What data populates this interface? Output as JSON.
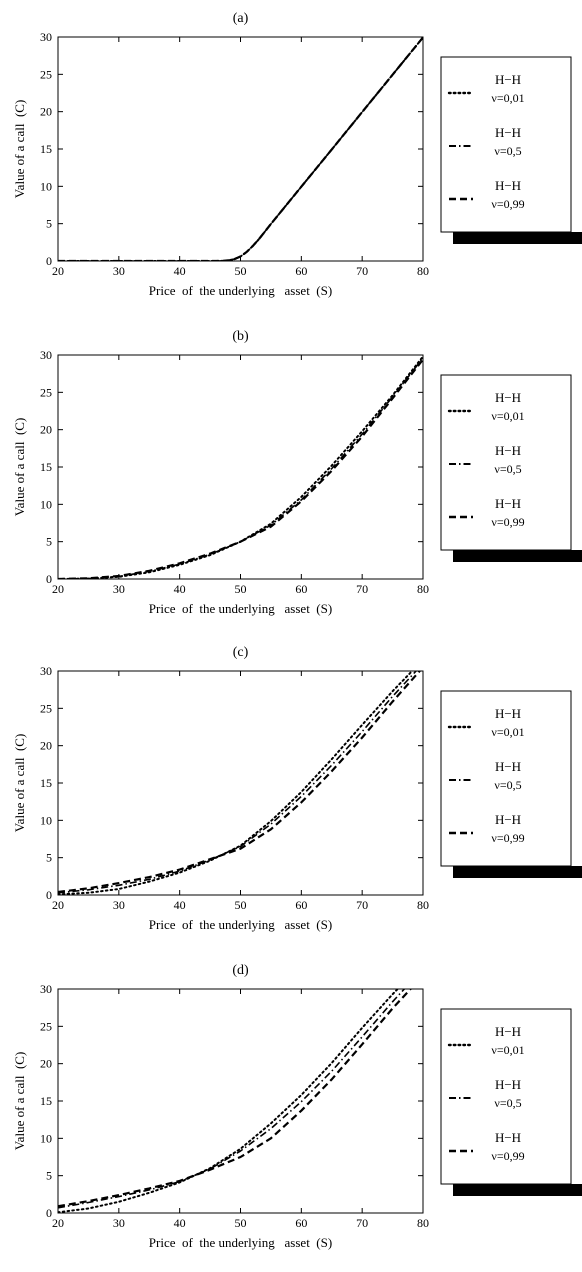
{
  "colors": {
    "background": "#ffffff",
    "ink": "#000000",
    "legend_shadow": "#000000"
  },
  "chart_data": [
    {
      "type": "line",
      "title": "(a)",
      "xlabel": "Price  of  the underlying   asset  (S)",
      "ylabel": "Value of a call  (C)",
      "xlim": [
        20,
        80
      ],
      "ylim": [
        0,
        30
      ],
      "xticks": [
        20,
        30,
        40,
        50,
        60,
        70,
        80
      ],
      "yticks": [
        0,
        5,
        10,
        15,
        20,
        25,
        30
      ],
      "grid": false,
      "legend_position": "right",
      "x": [
        20,
        30,
        40,
        45,
        47,
        48,
        49,
        50,
        51,
        52,
        53,
        55,
        60,
        65,
        70,
        75,
        80
      ],
      "series": [
        {
          "model": "H−H",
          "param": "ν=0,01",
          "style": "dotted",
          "values": [
            0,
            0,
            0,
            0,
            0.02,
            0.08,
            0.25,
            0.6,
            1.2,
            2.0,
            2.9,
            4.95,
            9.95,
            14.95,
            19.95,
            24.95,
            29.95
          ]
        },
        {
          "model": "H−H",
          "param": "ν=0,5",
          "style": "dashdot",
          "values": [
            0,
            0,
            0,
            0,
            0.02,
            0.08,
            0.25,
            0.6,
            1.2,
            2.0,
            2.9,
            4.95,
            9.95,
            14.95,
            19.95,
            24.95,
            29.95
          ]
        },
        {
          "model": "H−H",
          "param": "ν=0,99",
          "style": "dashed",
          "values": [
            0,
            0,
            0,
            0,
            0.02,
            0.08,
            0.25,
            0.6,
            1.2,
            2.0,
            2.9,
            4.95,
            9.95,
            14.95,
            19.95,
            24.95,
            29.95
          ]
        }
      ]
    },
    {
      "type": "line",
      "title": "(b)",
      "xlabel": "Price  of  the underlying   asset  (S)",
      "ylabel": "Value of a call  (C)",
      "xlim": [
        20,
        80
      ],
      "ylim": [
        0,
        30
      ],
      "xticks": [
        20,
        30,
        40,
        50,
        60,
        70,
        80
      ],
      "yticks": [
        0,
        5,
        10,
        15,
        20,
        25,
        30
      ],
      "grid": false,
      "legend_position": "right",
      "x": [
        20,
        25,
        30,
        35,
        40,
        45,
        50,
        55,
        60,
        65,
        70,
        75,
        80
      ],
      "series": [
        {
          "model": "H−H",
          "param": "ν=0,01",
          "style": "dotted",
          "values": [
            0,
            0.05,
            0.3,
            0.9,
            1.9,
            3.2,
            5.0,
            7.4,
            11.0,
            15.2,
            19.8,
            24.6,
            29.8
          ]
        },
        {
          "model": "H−H",
          "param": "ν=0,5",
          "style": "dashdot",
          "values": [
            0,
            0.05,
            0.35,
            1.0,
            2.0,
            3.3,
            5.0,
            7.2,
            10.6,
            14.8,
            19.4,
            24.4,
            29.6
          ]
        },
        {
          "model": "H−H",
          "param": "ν=0,99",
          "style": "dashed",
          "values": [
            0,
            0.1,
            0.4,
            1.1,
            2.1,
            3.4,
            5.0,
            7.0,
            10.4,
            14.5,
            19.1,
            24.2,
            29.4
          ]
        }
      ]
    },
    {
      "type": "line",
      "title": "(c)",
      "xlabel": "Price  of  the underlying   asset  (S)",
      "ylabel": "Value of a call  (C)",
      "xlim": [
        20,
        80
      ],
      "ylim": [
        0,
        30
      ],
      "xticks": [
        20,
        30,
        40,
        50,
        60,
        70,
        80
      ],
      "yticks": [
        0,
        5,
        10,
        15,
        20,
        25,
        30
      ],
      "grid": false,
      "legend_position": "right",
      "x": [
        20,
        25,
        30,
        35,
        40,
        45,
        50,
        55,
        60,
        65,
        70,
        75,
        80
      ],
      "series": [
        {
          "model": "H−H",
          "param": "ν=0,01",
          "style": "dotted",
          "values": [
            0.1,
            0.3,
            0.8,
            1.8,
            3.0,
            4.6,
            6.6,
            9.9,
            13.8,
            18.2,
            22.8,
            27.3,
            31.5
          ]
        },
        {
          "model": "H−H",
          "param": "ν=0,5",
          "style": "dashdot",
          "values": [
            0.3,
            0.7,
            1.3,
            2.1,
            3.2,
            4.7,
            6.5,
            9.5,
            13.2,
            17.4,
            21.9,
            26.6,
            31.0
          ]
        },
        {
          "model": "H−H",
          "param": "ν=0,99",
          "style": "dashed",
          "values": [
            0.4,
            0.9,
            1.6,
            2.4,
            3.4,
            4.8,
            6.2,
            8.8,
            12.4,
            16.6,
            21.1,
            25.9,
            30.5
          ]
        }
      ]
    },
    {
      "type": "line",
      "title": "(d)",
      "xlabel": "Price  of  the underlying   asset  (S)",
      "ylabel": "Value of a call  (C)",
      "xlim": [
        20,
        80
      ],
      "ylim": [
        0,
        30
      ],
      "xticks": [
        20,
        30,
        40,
        50,
        60,
        70,
        80
      ],
      "yticks": [
        0,
        5,
        10,
        15,
        20,
        25,
        30
      ],
      "grid": false,
      "legend_position": "right",
      "x": [
        20,
        25,
        30,
        35,
        40,
        45,
        50,
        55,
        60,
        65,
        70,
        75,
        80
      ],
      "series": [
        {
          "model": "H−H",
          "param": "ν=0,01",
          "style": "dotted",
          "values": [
            0.1,
            0.6,
            1.5,
            2.7,
            4.1,
            6.0,
            8.6,
            12.0,
            15.8,
            20.1,
            24.8,
            29.3,
            33.5
          ]
        },
        {
          "model": "H−H",
          "param": "ν=0,5",
          "style": "dashdot",
          "values": [
            0.7,
            1.4,
            2.2,
            3.1,
            4.2,
            5.9,
            8.3,
            11.3,
            14.9,
            19.0,
            23.6,
            28.3,
            32.7
          ]
        },
        {
          "model": "H−H",
          "param": "ν=0,99",
          "style": "dashed",
          "values": [
            0.9,
            1.6,
            2.4,
            3.3,
            4.3,
            5.8,
            7.5,
            10.0,
            13.7,
            17.9,
            22.6,
            27.4,
            31.8
          ]
        }
      ]
    }
  ]
}
